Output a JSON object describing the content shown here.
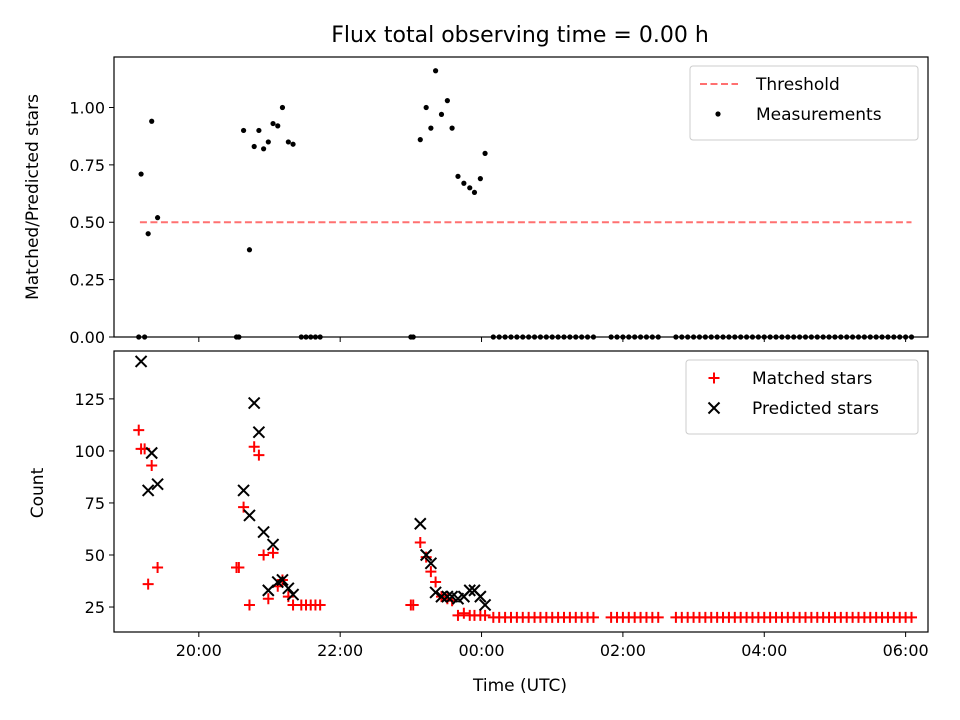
{
  "title": "Flux total observing time = 0.00 h",
  "x_tick_labels": [
    "20:00",
    "22:00",
    "00:00",
    "02:00",
    "04:00",
    "06:00"
  ],
  "chart_data": [
    {
      "type": "scatter",
      "ylabel": "Matched/Predicted stars",
      "ylim": [
        0,
        1.22
      ],
      "xlim": [
        "18:48",
        "06:19"
      ],
      "y_ticks": [
        0,
        0.25,
        0.5,
        0.75,
        1.0
      ],
      "y_tick_labels": [
        "0.00",
        "0.25",
        "0.50",
        "0.75",
        "1.00"
      ],
      "legend_position": "top-right",
      "threshold": {
        "name": "Threshold",
        "value": 0.5,
        "x": [
          "19:10",
          "06:05"
        ],
        "color": "#ff7070",
        "style": "dashed"
      },
      "series": [
        {
          "name": "Measurements",
          "color": "#000000",
          "marker": "dot",
          "points": [
            [
              "19:09",
              0
            ],
            [
              "19:11",
              0.71
            ],
            [
              "19:14",
              0
            ],
            [
              "19:17",
              0.45
            ],
            [
              "19:20",
              0.94
            ],
            [
              "19:25",
              0.52
            ],
            [
              "20:32",
              0
            ],
            [
              "20:34",
              0
            ],
            [
              "20:38",
              0.9
            ],
            [
              "20:43",
              0.38
            ],
            [
              "20:47",
              0.83
            ],
            [
              "20:51",
              0.9
            ],
            [
              "20:55",
              0.82
            ],
            [
              "20:59",
              0.85
            ],
            [
              "21:03",
              0.93
            ],
            [
              "21:07",
              0.92
            ],
            [
              "21:11",
              1.0
            ],
            [
              "21:16",
              0.85
            ],
            [
              "21:20",
              0.84
            ],
            [
              "21:27",
              0
            ],
            [
              "21:31",
              0
            ],
            [
              "21:35",
              0
            ],
            [
              "21:39",
              0
            ],
            [
              "21:43",
              0
            ],
            [
              "23:00",
              0
            ],
            [
              "23:02",
              0
            ],
            [
              "23:08",
              0.86
            ],
            [
              "23:13",
              1.0
            ],
            [
              "23:17",
              0.91
            ],
            [
              "23:21",
              1.16
            ],
            [
              "23:26",
              0.97
            ],
            [
              "23:31",
              1.03
            ],
            [
              "23:35",
              0.91
            ],
            [
              "23:40",
              0.7
            ],
            [
              "23:45",
              0.67
            ],
            [
              "23:50",
              0.65
            ],
            [
              "23:54",
              0.63
            ],
            [
              "23:59",
              0.69
            ],
            [
              "00:03",
              0.8
            ],
            [
              "00:10",
              0
            ],
            [
              "00:15",
              0
            ],
            [
              "00:20",
              0
            ],
            [
              "00:25",
              0
            ],
            [
              "00:30",
              0
            ],
            [
              "00:35",
              0
            ],
            [
              "00:40",
              0
            ],
            [
              "00:45",
              0
            ],
            [
              "00:50",
              0
            ],
            [
              "00:55",
              0
            ],
            [
              "01:00",
              0
            ],
            [
              "01:05",
              0
            ],
            [
              "01:10",
              0
            ],
            [
              "01:15",
              0
            ],
            [
              "01:20",
              0
            ],
            [
              "01:25",
              0
            ],
            [
              "01:30",
              0
            ],
            [
              "01:35",
              0
            ],
            [
              "01:50",
              0
            ],
            [
              "01:55",
              0
            ],
            [
              "02:00",
              0
            ],
            [
              "02:05",
              0
            ],
            [
              "02:10",
              0
            ],
            [
              "02:15",
              0
            ],
            [
              "02:20",
              0
            ],
            [
              "02:25",
              0
            ],
            [
              "02:30",
              0
            ],
            [
              "02:45",
              0
            ],
            [
              "02:50",
              0
            ],
            [
              "02:55",
              0
            ],
            [
              "03:00",
              0
            ],
            [
              "03:05",
              0
            ],
            [
              "03:10",
              0
            ],
            [
              "03:15",
              0
            ],
            [
              "03:20",
              0
            ],
            [
              "03:25",
              0
            ],
            [
              "03:30",
              0
            ],
            [
              "03:35",
              0
            ],
            [
              "03:40",
              0
            ],
            [
              "03:45",
              0
            ],
            [
              "03:50",
              0
            ],
            [
              "03:55",
              0
            ],
            [
              "04:00",
              0
            ],
            [
              "04:05",
              0
            ],
            [
              "04:10",
              0
            ],
            [
              "04:15",
              0
            ],
            [
              "04:20",
              0
            ],
            [
              "04:25",
              0
            ],
            [
              "04:30",
              0
            ],
            [
              "04:35",
              0
            ],
            [
              "04:40",
              0
            ],
            [
              "04:45",
              0
            ],
            [
              "04:50",
              0
            ],
            [
              "04:55",
              0
            ],
            [
              "05:00",
              0
            ],
            [
              "05:05",
              0
            ],
            [
              "05:10",
              0
            ],
            [
              "05:15",
              0
            ],
            [
              "05:20",
              0
            ],
            [
              "05:25",
              0
            ],
            [
              "05:30",
              0
            ],
            [
              "05:35",
              0
            ],
            [
              "05:40",
              0
            ],
            [
              "05:45",
              0
            ],
            [
              "05:50",
              0
            ],
            [
              "05:55",
              0
            ],
            [
              "06:00",
              0
            ],
            [
              "06:05",
              0
            ]
          ]
        }
      ]
    },
    {
      "type": "scatter",
      "ylabel": "Count",
      "xlabel": "Time (UTC)",
      "ylim": [
        13,
        148
      ],
      "xlim": [
        "18:48",
        "06:19"
      ],
      "y_ticks": [
        25,
        50,
        75,
        100,
        125
      ],
      "y_tick_labels": [
        "25",
        "50",
        "75",
        "100",
        "125"
      ],
      "legend_position": "top-right",
      "series": [
        {
          "name": "Matched stars",
          "color": "#ff0000",
          "marker": "plus",
          "points": [
            [
              "19:09",
              110
            ],
            [
              "19:11",
              101
            ],
            [
              "19:14",
              101
            ],
            [
              "19:17",
              36
            ],
            [
              "19:20",
              93
            ],
            [
              "19:25",
              44
            ],
            [
              "20:32",
              44
            ],
            [
              "20:34",
              44
            ],
            [
              "20:38",
              73
            ],
            [
              "20:43",
              26
            ],
            [
              "20:47",
              102
            ],
            [
              "20:51",
              98
            ],
            [
              "20:55",
              50
            ],
            [
              "20:59",
              29
            ],
            [
              "21:03",
              51
            ],
            [
              "21:07",
              35
            ],
            [
              "21:11",
              38
            ],
            [
              "21:16",
              30
            ],
            [
              "21:20",
              26
            ],
            [
              "21:27",
              26
            ],
            [
              "21:31",
              26
            ],
            [
              "21:35",
              26
            ],
            [
              "21:39",
              26
            ],
            [
              "21:43",
              26
            ],
            [
              "23:00",
              26
            ],
            [
              "23:02",
              26
            ],
            [
              "23:08",
              56
            ],
            [
              "23:13",
              49
            ],
            [
              "23:17",
              42
            ],
            [
              "23:21",
              37
            ],
            [
              "23:26",
              30
            ],
            [
              "23:31",
              29
            ],
            [
              "23:35",
              28
            ],
            [
              "23:40",
              21
            ],
            [
              "23:45",
              22
            ],
            [
              "23:50",
              21
            ],
            [
              "23:54",
              21
            ],
            [
              "23:59",
              21
            ],
            [
              "00:03",
              21
            ],
            [
              "00:10",
              20
            ],
            [
              "00:15",
              20
            ],
            [
              "00:20",
              20
            ],
            [
              "00:25",
              20
            ],
            [
              "00:30",
              20
            ],
            [
              "00:35",
              20
            ],
            [
              "00:40",
              20
            ],
            [
              "00:45",
              20
            ],
            [
              "00:50",
              20
            ],
            [
              "00:55",
              20
            ],
            [
              "01:00",
              20
            ],
            [
              "01:05",
              20
            ],
            [
              "01:10",
              20
            ],
            [
              "01:15",
              20
            ],
            [
              "01:20",
              20
            ],
            [
              "01:25",
              20
            ],
            [
              "01:30",
              20
            ],
            [
              "01:35",
              20
            ],
            [
              "01:50",
              20
            ],
            [
              "01:55",
              20
            ],
            [
              "02:00",
              20
            ],
            [
              "02:05",
              20
            ],
            [
              "02:10",
              20
            ],
            [
              "02:15",
              20
            ],
            [
              "02:20",
              20
            ],
            [
              "02:25",
              20
            ],
            [
              "02:30",
              20
            ],
            [
              "02:45",
              20
            ],
            [
              "02:50",
              20
            ],
            [
              "02:55",
              20
            ],
            [
              "03:00",
              20
            ],
            [
              "03:05",
              20
            ],
            [
              "03:10",
              20
            ],
            [
              "03:15",
              20
            ],
            [
              "03:20",
              20
            ],
            [
              "03:25",
              20
            ],
            [
              "03:30",
              20
            ],
            [
              "03:35",
              20
            ],
            [
              "03:40",
              20
            ],
            [
              "03:45",
              20
            ],
            [
              "03:50",
              20
            ],
            [
              "03:55",
              20
            ],
            [
              "04:00",
              20
            ],
            [
              "04:05",
              20
            ],
            [
              "04:10",
              20
            ],
            [
              "04:15",
              20
            ],
            [
              "04:20",
              20
            ],
            [
              "04:25",
              20
            ],
            [
              "04:30",
              20
            ],
            [
              "04:35",
              20
            ],
            [
              "04:40",
              20
            ],
            [
              "04:45",
              20
            ],
            [
              "04:50",
              20
            ],
            [
              "04:55",
              20
            ],
            [
              "05:00",
              20
            ],
            [
              "05:05",
              20
            ],
            [
              "05:10",
              20
            ],
            [
              "05:15",
              20
            ],
            [
              "05:20",
              20
            ],
            [
              "05:25",
              20
            ],
            [
              "05:30",
              20
            ],
            [
              "05:35",
              20
            ],
            [
              "05:40",
              20
            ],
            [
              "05:45",
              20
            ],
            [
              "05:50",
              20
            ],
            [
              "05:55",
              20
            ],
            [
              "06:00",
              20
            ],
            [
              "06:05",
              20
            ]
          ]
        },
        {
          "name": "Predicted stars",
          "color": "#000000",
          "marker": "x",
          "points": [
            [
              "19:11",
              143
            ],
            [
              "19:17",
              81
            ],
            [
              "19:20",
              99
            ],
            [
              "19:25",
              84
            ],
            [
              "20:38",
              81
            ],
            [
              "20:43",
              69
            ],
            [
              "20:47",
              123
            ],
            [
              "20:51",
              109
            ],
            [
              "20:55",
              61
            ],
            [
              "20:59",
              33
            ],
            [
              "21:03",
              55
            ],
            [
              "21:07",
              37
            ],
            [
              "21:11",
              38
            ],
            [
              "21:16",
              34
            ],
            [
              "21:20",
              31
            ],
            [
              "23:08",
              65
            ],
            [
              "23:13",
              50
            ],
            [
              "23:17",
              46
            ],
            [
              "23:21",
              32
            ],
            [
              "23:26",
              30
            ],
            [
              "23:31",
              30
            ],
            [
              "23:35",
              30
            ],
            [
              "23:40",
              29
            ],
            [
              "23:45",
              30
            ],
            [
              "23:50",
              33
            ],
            [
              "23:54",
              33
            ],
            [
              "23:59",
              30
            ],
            [
              "00:03",
              26
            ]
          ]
        }
      ]
    }
  ]
}
